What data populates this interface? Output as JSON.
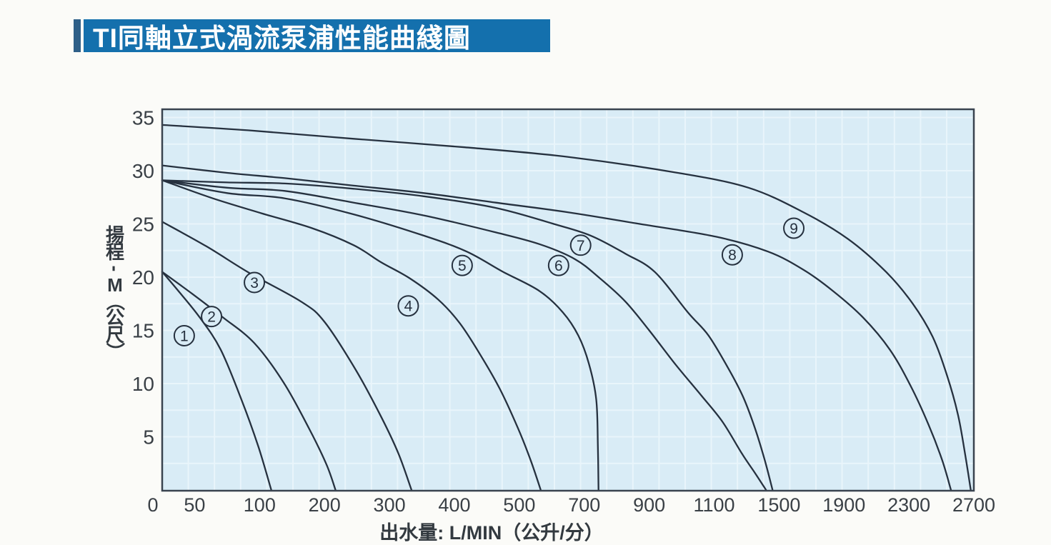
{
  "page": {
    "title": "TI同軸立式渦流泵浦性能曲綫圖"
  },
  "colors": {
    "title_bar": "#1470ad",
    "title_accent": "#2e5f88",
    "title_text": "#ffffff",
    "plot_background": "#d9ecf6",
    "grid_line": "#e9f5fb",
    "plot_border": "#39434f",
    "curve": "#26313f",
    "tick_text": "#3a4046"
  },
  "chart_data": {
    "type": "line",
    "title": "TI同軸立式渦流泵浦性能曲綫圖",
    "xlabel": "出水量: L/MIN（公升/分）",
    "ylabel": "揚程-M（公尺）",
    "x_ticks": [
      0,
      50,
      100,
      200,
      300,
      400,
      500,
      700,
      900,
      1100,
      1500,
      1900,
      2300,
      2700
    ],
    "y_ticks": [
      5,
      10,
      15,
      20,
      25,
      30,
      35
    ],
    "ylim": [
      0,
      36
    ],
    "xlim_note": "non-linear axis: first interval (0-50) is half width, all other labeled intervals equal width",
    "grid": true,
    "legend_position": "none",
    "series": [
      {
        "name": "curve-1",
        "label": "①",
        "label_at": [
          34,
          14.5
        ],
        "points": [
          [
            0,
            20.5
          ],
          [
            25,
            18.7
          ],
          [
            54,
            16.2
          ],
          [
            70,
            13.2
          ],
          [
            86,
            8.5
          ],
          [
            99,
            4.1
          ],
          [
            118,
            0
          ]
        ]
      },
      {
        "name": "curve-2",
        "label": "②",
        "label_at": [
          63,
          16.3
        ],
        "points": [
          [
            0,
            20.5
          ],
          [
            47,
            18.4
          ],
          [
            72,
            16.2
          ],
          [
            96,
            13.8
          ],
          [
            137,
            10.1
          ],
          [
            176,
            5.8
          ],
          [
            203,
            2.4
          ],
          [
            217,
            0
          ]
        ]
      },
      {
        "name": "curve-3",
        "label": "③",
        "label_at": [
          96,
          19.5
        ],
        "points": [
          [
            0,
            25.2
          ],
          [
            59,
            22.9
          ],
          [
            92,
            20.4
          ],
          [
            164,
            17.7
          ],
          [
            200,
            15.8
          ],
          [
            248,
            11.3
          ],
          [
            287,
            6.9
          ],
          [
            314,
            3.4
          ],
          [
            334,
            0
          ]
        ]
      },
      {
        "name": "curve-4",
        "label": "④",
        "label_at": [
          329,
          17.3
        ],
        "points": [
          [
            0,
            29.1
          ],
          [
            64,
            27.4
          ],
          [
            103,
            26.0
          ],
          [
            181,
            24.6
          ],
          [
            245,
            23.0
          ],
          [
            287,
            21.4
          ],
          [
            331,
            19.9
          ],
          [
            375,
            17.9
          ],
          [
            408,
            15.7
          ],
          [
            439,
            12.8
          ],
          [
            470,
            9.5
          ],
          [
            498,
            5.8
          ],
          [
            535,
            2.8
          ],
          [
            566,
            0
          ]
        ]
      },
      {
        "name": "curve-5",
        "label": "⑤",
        "label_at": [
          412,
          21.1
        ],
        "points": [
          [
            0,
            29.1
          ],
          [
            75,
            27.9
          ],
          [
            139,
            27.4
          ],
          [
            245,
            25.9
          ],
          [
            353,
            23.9
          ],
          [
            419,
            22.4
          ],
          [
            475,
            20.5
          ],
          [
            562,
            18.7
          ],
          [
            634,
            16.7
          ],
          [
            682,
            14.5
          ],
          [
            715,
            11.8
          ],
          [
            737,
            8.5
          ],
          [
            742,
            4.1
          ],
          [
            744,
            0
          ]
        ]
      },
      {
        "name": "curve-6",
        "label": "⑥",
        "label_at": [
          621,
          21.1
        ],
        "points": [
          [
            0,
            29.1
          ],
          [
            75,
            28.4
          ],
          [
            139,
            28.1
          ],
          [
            245,
            27.0
          ],
          [
            353,
            25.8
          ],
          [
            464,
            24.2
          ],
          [
            562,
            23.1
          ],
          [
            671,
            21.7
          ],
          [
            748,
            19.9
          ],
          [
            827,
            17.7
          ],
          [
            900,
            15.0
          ],
          [
            981,
            11.8
          ],
          [
            1060,
            8.9
          ],
          [
            1152,
            6.4
          ],
          [
            1272,
            3.4
          ],
          [
            1352,
            1.6
          ],
          [
            1420,
            0
          ]
        ]
      },
      {
        "name": "curve-7",
        "label": "⑦",
        "label_at": [
          689,
          23.0
        ],
        "points": [
          [
            0,
            29.1
          ],
          [
            75,
            28.9
          ],
          [
            139,
            28.8
          ],
          [
            245,
            28.3
          ],
          [
            353,
            27.6
          ],
          [
            464,
            26.5
          ],
          [
            606,
            25.0
          ],
          [
            720,
            23.9
          ],
          [
            827,
            22.2
          ],
          [
            917,
            20.5
          ],
          [
            1019,
            16.7
          ],
          [
            1083,
            14.5
          ],
          [
            1192,
            11.3
          ],
          [
            1280,
            8.7
          ],
          [
            1352,
            5.8
          ],
          [
            1412,
            2.8
          ],
          [
            1460,
            0
          ]
        ]
      },
      {
        "name": "curve-8",
        "label": "⑧",
        "label_at": [
          1212,
          22.1
        ],
        "points": [
          [
            0,
            30.5
          ],
          [
            75,
            29.8
          ],
          [
            139,
            29.3
          ],
          [
            245,
            28.6
          ],
          [
            353,
            27.9
          ],
          [
            464,
            27.0
          ],
          [
            649,
            26.1
          ],
          [
            871,
            25.0
          ],
          [
            1112,
            23.8
          ],
          [
            1432,
            22.4
          ],
          [
            1650,
            20.7
          ],
          [
            1832,
            18.7
          ],
          [
            2018,
            16.2
          ],
          [
            2182,
            13.2
          ],
          [
            2310,
            9.8
          ],
          [
            2422,
            6.1
          ],
          [
            2505,
            2.8
          ],
          [
            2559,
            0
          ]
        ]
      },
      {
        "name": "curve-9",
        "label": "⑨",
        "label_at": [
          1591,
          24.6
        ],
        "points": [
          [
            0,
            34.3
          ],
          [
            91,
            33.8
          ],
          [
            245,
            33.0
          ],
          [
            416,
            32.2
          ],
          [
            649,
            31.3
          ],
          [
            988,
            29.8
          ],
          [
            1312,
            28.4
          ],
          [
            1650,
            26.1
          ],
          [
            1924,
            23.6
          ],
          [
            2159,
            20.5
          ],
          [
            2324,
            17.5
          ],
          [
            2446,
            14.4
          ],
          [
            2534,
            10.8
          ],
          [
            2602,
            7.1
          ],
          [
            2646,
            3.4
          ],
          [
            2681,
            0
          ]
        ]
      }
    ]
  }
}
